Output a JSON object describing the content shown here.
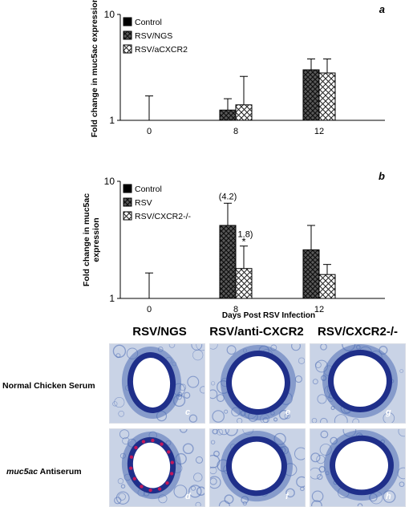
{
  "chart_data": [
    {
      "type": "bar",
      "panel_label": "a",
      "ylabel": "Fold change in muc5ac expression",
      "xlabel": "",
      "y_scale": "log",
      "ylim": [
        1,
        10
      ],
      "y_ticks": [
        "1",
        "10"
      ],
      "categories": [
        "0",
        "8",
        "12"
      ],
      "legend_position": "top-left",
      "series": [
        {
          "name": "Control",
          "pattern": "solid",
          "color": "#000000",
          "values": [
            1.0,
            null,
            null
          ],
          "errors": [
            0.7,
            null,
            null
          ]
        },
        {
          "name": "RSV/NGS",
          "pattern": "crosshatch-dark",
          "color": "#4a4a4a",
          "values": [
            null,
            1.25,
            3.0
          ],
          "errors": [
            null,
            0.35,
            0.8
          ]
        },
        {
          "name": "RSV/aCXCR2",
          "pattern": "crosshatch-light",
          "color": "#ffffff",
          "values": [
            null,
            1.4,
            2.8
          ],
          "errors": [
            null,
            1.2,
            1.0
          ]
        }
      ],
      "annotations": []
    },
    {
      "type": "bar",
      "panel_label": "b",
      "ylabel": "Fold change in muc5ac expression",
      "xlabel": "Days Post RSV Infection",
      "y_scale": "log",
      "ylim": [
        1,
        10
      ],
      "y_ticks": [
        "1",
        "10"
      ],
      "categories": [
        "0",
        "8",
        "12"
      ],
      "legend_position": "top-left",
      "series": [
        {
          "name": "Control",
          "pattern": "solid",
          "color": "#000000",
          "values": [
            1.0,
            null,
            null
          ],
          "errors": [
            0.65,
            null,
            null
          ]
        },
        {
          "name": "RSV",
          "pattern": "crosshatch-dark",
          "color": "#4a4a4a",
          "values": [
            null,
            4.2,
            2.6
          ],
          "errors": [
            null,
            2.3,
            1.6
          ]
        },
        {
          "name": "RSV/CXCR2-/-",
          "pattern": "crosshatch-light",
          "color": "#ffffff",
          "values": [
            null,
            1.8,
            1.6
          ],
          "errors": [
            null,
            1.0,
            0.35
          ]
        }
      ],
      "annotations": [
        {
          "text": "(4.2)",
          "category": "8",
          "series": 1
        },
        {
          "text": "1.8)",
          "category": "8",
          "series": 2
        },
        {
          "text": "*",
          "category": "8",
          "series": 2
        }
      ]
    }
  ],
  "micrographs": {
    "columns": [
      "RSV/NGS",
      "RSV/anti-CXCR2",
      "RSV/CXCR2-/-"
    ],
    "rows": [
      {
        "label": "Normal Chicken Serum",
        "italic_prefix": ""
      },
      {
        "label": " Antiserum",
        "italic_prefix": "muc5ac"
      }
    ],
    "panel_letters": [
      [
        "c",
        "e",
        "g"
      ],
      [
        "d",
        "f",
        "h"
      ]
    ],
    "stain_colors": {
      "background": "#c9d3e6",
      "tissue": "#4f6eb4",
      "epithelium": "#1f2f8a",
      "lumen": "#ffffff",
      "positive_stain": "#c2185b"
    }
  }
}
